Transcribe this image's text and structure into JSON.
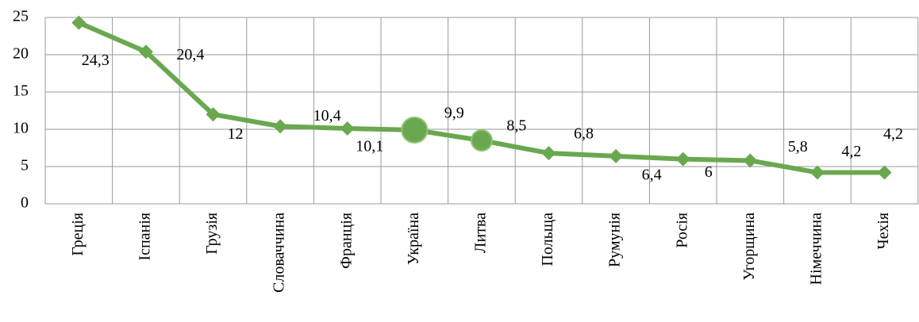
{
  "chart_data": {
    "type": "line",
    "categories": [
      "Греція",
      "Іспанія",
      "Грузія",
      "Словаччина",
      "Франція",
      "Україна",
      "Литва",
      "Польща",
      "Румунія",
      "Росія",
      "Угорщина",
      "Німеччина",
      "Чехія"
    ],
    "values": [
      24.3,
      20.4,
      12,
      10.4,
      10.1,
      9.9,
      8.5,
      6.8,
      6.4,
      6,
      5.8,
      4.2,
      4.2
    ],
    "value_labels": [
      "24,3",
      "20,4",
      "12",
      "10,4",
      "10,1",
      "9,9",
      "8,5",
      "6,8",
      "6,4",
      "6",
      "5,8",
      "4,2",
      "4,2"
    ],
    "color": "#6aa84f",
    "ylim": [
      0,
      25
    ],
    "yticks": [
      0,
      5,
      10,
      15,
      20,
      25
    ],
    "grid": true
  }
}
